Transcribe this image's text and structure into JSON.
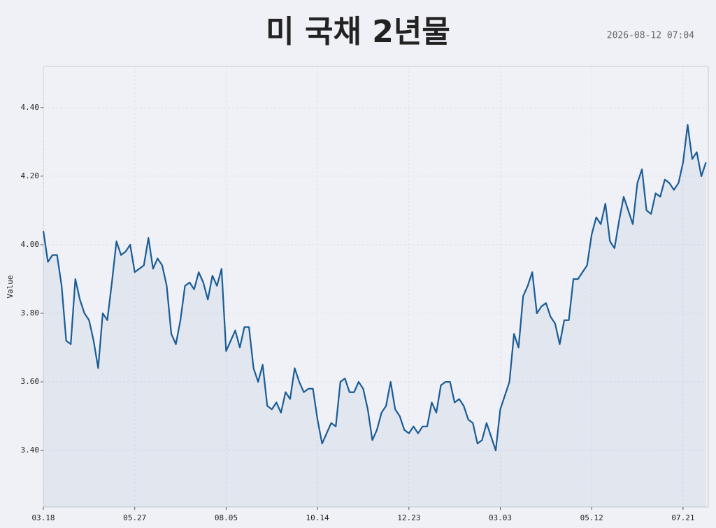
{
  "chart_data": {
    "type": "line",
    "title": "미 국채 2년물",
    "timestamp": "2026-08-12 07:04",
    "ylabel": "Value",
    "categories": [
      "03.18",
      null,
      null,
      null,
      null,
      null,
      null,
      null,
      null,
      null,
      null,
      null,
      null,
      null,
      null,
      null,
      null,
      null,
      null,
      null,
      "05.27",
      null,
      null,
      null,
      null,
      null,
      null,
      null,
      null,
      null,
      null,
      null,
      null,
      null,
      null,
      null,
      null,
      null,
      null,
      null,
      "08.05",
      null,
      null,
      null,
      null,
      null,
      null,
      null,
      null,
      null,
      null,
      null,
      null,
      null,
      null,
      null,
      null,
      null,
      null,
      null,
      "10.14",
      null,
      null,
      null,
      null,
      null,
      null,
      null,
      null,
      null,
      null,
      null,
      null,
      null,
      null,
      null,
      null,
      null,
      null,
      null,
      "12.23",
      null,
      null,
      null,
      null,
      null,
      null,
      null,
      null,
      null,
      null,
      null,
      null,
      null,
      null,
      null,
      null,
      null,
      null,
      null,
      "03.03",
      null,
      null,
      null,
      null,
      null,
      null,
      null,
      null,
      null,
      null,
      null,
      null,
      null,
      null,
      null,
      null,
      null,
      null,
      null,
      "05.12",
      null,
      null,
      null,
      null,
      null,
      null,
      null,
      null,
      null,
      null,
      null,
      null,
      null,
      null,
      null,
      null,
      null,
      null,
      null,
      "07.21",
      null,
      null,
      null,
      null,
      null
    ],
    "series": [
      {
        "color": "#1a5c96",
        "values": [
          4.04,
          3.95,
          3.97,
          3.97,
          3.88,
          3.72,
          3.71,
          3.9,
          3.84,
          3.8,
          3.78,
          3.72,
          3.64,
          3.8,
          3.78,
          3.89,
          4.01,
          3.97,
          3.98,
          4.0,
          3.92,
          3.93,
          3.94,
          4.02,
          3.93,
          3.96,
          3.94,
          3.88,
          3.74,
          3.71,
          3.78,
          3.88,
          3.89,
          3.87,
          3.92,
          3.89,
          3.84,
          3.91,
          3.88,
          3.93,
          3.69,
          3.72,
          3.75,
          3.7,
          3.76,
          3.76,
          3.64,
          3.6,
          3.65,
          3.53,
          3.52,
          3.54,
          3.51,
          3.57,
          3.55,
          3.64,
          3.6,
          3.57,
          3.58,
          3.58,
          3.49,
          3.42,
          3.45,
          3.48,
          3.47,
          3.6,
          3.61,
          3.57,
          3.57,
          3.6,
          3.58,
          3.52,
          3.43,
          3.46,
          3.51,
          3.53,
          3.6,
          3.52,
          3.5,
          3.46,
          3.45,
          3.47,
          3.45,
          3.47,
          3.47,
          3.54,
          3.51,
          3.59,
          3.6,
          3.6,
          3.54,
          3.55,
          3.53,
          3.49,
          3.48,
          3.42,
          3.43,
          3.48,
          3.44,
          3.4,
          3.52,
          3.56,
          3.6,
          3.74,
          3.7,
          3.85,
          3.88,
          3.92,
          3.8,
          3.82,
          3.83,
          3.79,
          3.77,
          3.71,
          3.78,
          3.78,
          3.9,
          3.9,
          3.92,
          3.94,
          4.03,
          4.08,
          4.06,
          4.12,
          4.01,
          3.99,
          4.07,
          4.14,
          4.1,
          4.06,
          4.18,
          4.22,
          4.1,
          4.09,
          4.15,
          4.14,
          4.19,
          4.18,
          4.16,
          4.18,
          4.24,
          4.35,
          4.25,
          4.27,
          4.2,
          4.24
        ]
      }
    ],
    "ylim": [
      3.235,
      4.52
    ],
    "yticks": [
      {
        "value": 3.4,
        "label": "3.40"
      },
      {
        "value": 3.6,
        "label": "3.60"
      },
      {
        "value": 3.8,
        "label": "3.80"
      },
      {
        "value": 4.0,
        "label": "4.00"
      },
      {
        "value": 4.2,
        "label": "4.20"
      },
      {
        "value": 4.4,
        "label": "4.40"
      }
    ],
    "grid": true,
    "fill": true
  }
}
